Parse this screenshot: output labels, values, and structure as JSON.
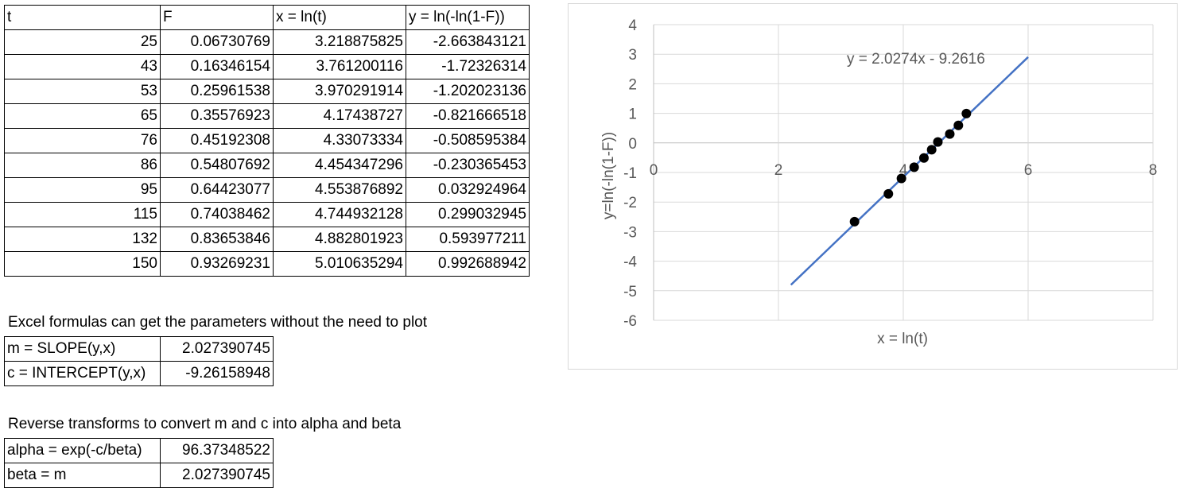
{
  "data_table": {
    "headers": [
      "t",
      "F",
      "x = ln(t)",
      "y = ln(-ln(1-F))"
    ],
    "rows": [
      [
        "25",
        "0.06730769",
        "3.218875825",
        "-2.663843121"
      ],
      [
        "43",
        "0.16346154",
        "3.761200116",
        "-1.72326314"
      ],
      [
        "53",
        "0.25961538",
        "3.970291914",
        "-1.202023136"
      ],
      [
        "65",
        "0.35576923",
        "4.17438727",
        "-0.821666518"
      ],
      [
        "76",
        "0.45192308",
        "4.33073334",
        "-0.508595384"
      ],
      [
        "86",
        "0.54807692",
        "4.454347296",
        "-0.230365453"
      ],
      [
        "95",
        "0.64423077",
        "4.553876892",
        "0.032924964"
      ],
      [
        "115",
        "0.74038462",
        "4.744932128",
        "0.299032945"
      ],
      [
        "132",
        "0.83653846",
        "4.882801923",
        "0.593977211"
      ],
      [
        "150",
        "0.93269231",
        "5.010635294",
        "0.992688942"
      ]
    ]
  },
  "formulas": {
    "note": "Excel formulas can get the parameters without the need to plot",
    "rows": [
      [
        "m = SLOPE(y,x)",
        "2.027390745"
      ],
      [
        "c = INTERCEPT(y,x)",
        "-9.26158948"
      ]
    ]
  },
  "reverse": {
    "note": "Reverse transforms to convert m and c into alpha and beta",
    "rows": [
      [
        "alpha = exp(-c/beta)",
        "96.37348522"
      ],
      [
        "beta = m",
        "2.027390745"
      ]
    ]
  },
  "chart_data": {
    "type": "scatter",
    "xlabel": "x = ln(t)",
    "ylabel": "y=ln(-ln(1-F))",
    "xlim": [
      0,
      8
    ],
    "ylim": [
      -6,
      4
    ],
    "x_ticks": [
      "0",
      "2",
      "4",
      "6",
      "8"
    ],
    "y_ticks": [
      "4",
      "3",
      "2",
      "1",
      "0",
      "-1",
      "-2",
      "-3",
      "-4",
      "-5",
      "-6"
    ],
    "grid": true,
    "points": [
      [
        3.218875825,
        -2.663843121
      ],
      [
        3.761200116,
        -1.72326314
      ],
      [
        3.970291914,
        -1.202023136
      ],
      [
        4.17438727,
        -0.821666518
      ],
      [
        4.33073334,
        -0.508595384
      ],
      [
        4.454347296,
        -0.230365453
      ],
      [
        4.553876892,
        0.032924964
      ],
      [
        4.744932128,
        0.299032945
      ],
      [
        4.882801923,
        0.593977211
      ],
      [
        5.010635294,
        0.992688942
      ]
    ],
    "trendline": {
      "slope": 2.0274,
      "intercept": -9.2616,
      "x_range": [
        2.2,
        6
      ],
      "label": "y = 2.0274x - 9.2616"
    },
    "colors": {
      "line": "#4472c4",
      "point": "#000000",
      "grid": "#d9d9d9",
      "axis": "#bfbfbf",
      "tick_text": "#595959"
    }
  }
}
